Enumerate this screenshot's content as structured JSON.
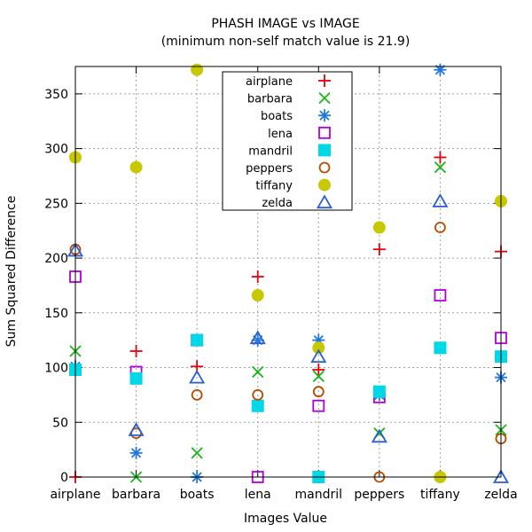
{
  "chart_data": {
    "type": "scatter",
    "title": "PHASH IMAGE vs IMAGE",
    "subtitle": "(minimum non-self match value is 21.9)",
    "xlabel": "Images Value",
    "ylabel": "Sum Squared Difference",
    "categories": [
      "airplane",
      "barbara",
      "boats",
      "lena",
      "mandril",
      "peppers",
      "tiffany",
      "zelda"
    ],
    "y_ticks": [
      0,
      50,
      100,
      150,
      200,
      250,
      300,
      350
    ],
    "ylim": [
      0,
      375
    ],
    "grid": true,
    "legend_position": "top-center",
    "series": [
      {
        "name": "airplane",
        "marker": "plus",
        "color": "#e8000b",
        "values": [
          0,
          115,
          101,
          183,
          98,
          208,
          292,
          206
        ]
      },
      {
        "name": "barbara",
        "marker": "cross",
        "color": "#14b814",
        "values": [
          115,
          0,
          22,
          96,
          92,
          40,
          283,
          43
        ]
      },
      {
        "name": "boats",
        "marker": "star",
        "color": "#1f77e0",
        "values": [
          101,
          22,
          0,
          125,
          125,
          75,
          372,
          91
        ]
      },
      {
        "name": "lena",
        "marker": "square-open",
        "color": "#b000e0",
        "values": [
          183,
          96,
          125,
          0,
          65,
          73,
          166,
          127
        ]
      },
      {
        "name": "mandril",
        "marker": "square-filled",
        "color": "#00d8e8",
        "values": [
          98,
          90,
          125,
          65,
          0,
          78,
          118,
          110
        ]
      },
      {
        "name": "peppers",
        "marker": "circle-open",
        "color": "#b84a00",
        "values": [
          208,
          40,
          75,
          75,
          78,
          0,
          228,
          35
        ]
      },
      {
        "name": "tiffany",
        "marker": "circle-filled",
        "color": "#c8c800",
        "values": [
          292,
          283,
          372,
          166,
          118,
          228,
          0,
          252
        ]
      },
      {
        "name": "zelda",
        "marker": "triangle-open",
        "color": "#2a5fd0",
        "values": [
          207,
          43,
          91,
          127,
          110,
          37,
          252,
          0
        ]
      }
    ]
  }
}
